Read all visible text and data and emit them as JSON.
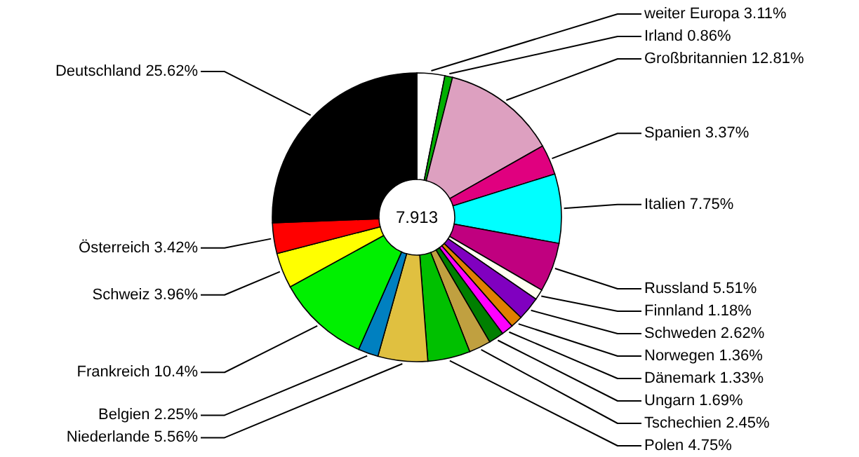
{
  "chart_data": {
    "type": "donut",
    "categories": [
      "weiter Europa",
      "Irland",
      "Großbritannien",
      "Spanien",
      "Italien",
      "Russland",
      "Finnland",
      "Schweden",
      "Norwegen",
      "Dänemark",
      "Ungarn",
      "Tschechien",
      "Polen",
      "Niederlande",
      "Belgien",
      "Frankreich",
      "Schweiz",
      "Österreich",
      "Deutschland"
    ],
    "values": [
      3.11,
      0.86,
      12.81,
      3.37,
      7.75,
      5.51,
      1.18,
      2.62,
      1.36,
      1.33,
      1.69,
      2.45,
      4.75,
      5.56,
      2.25,
      10.4,
      3.96,
      3.42,
      25.62
    ],
    "value_labels": [
      "3.11%",
      "0.86%",
      "12.81%",
      "3.37%",
      "7.75%",
      "5.51%",
      "1.18%",
      "2.62%",
      "1.36%",
      "1.33%",
      "1.69%",
      "2.45%",
      "4.75%",
      "5.56%",
      "2.25%",
      "10.4%",
      "3.96%",
      "3.42%",
      "25.62%"
    ],
    "colors": [
      "#ffffff",
      "#00b000",
      "#dda0c0",
      "#e0007f",
      "#00ffff",
      "#c0007f",
      "#fffff0",
      "#8000c0",
      "#e08000",
      "#ff00ff",
      "#007f00",
      "#c0a040",
      "#00c000",
      "#e0c040",
      "#0080c0",
      "#00f000",
      "#ffff00",
      "#ff0000",
      "#000000"
    ],
    "annotations": [
      "7.913"
    ]
  }
}
